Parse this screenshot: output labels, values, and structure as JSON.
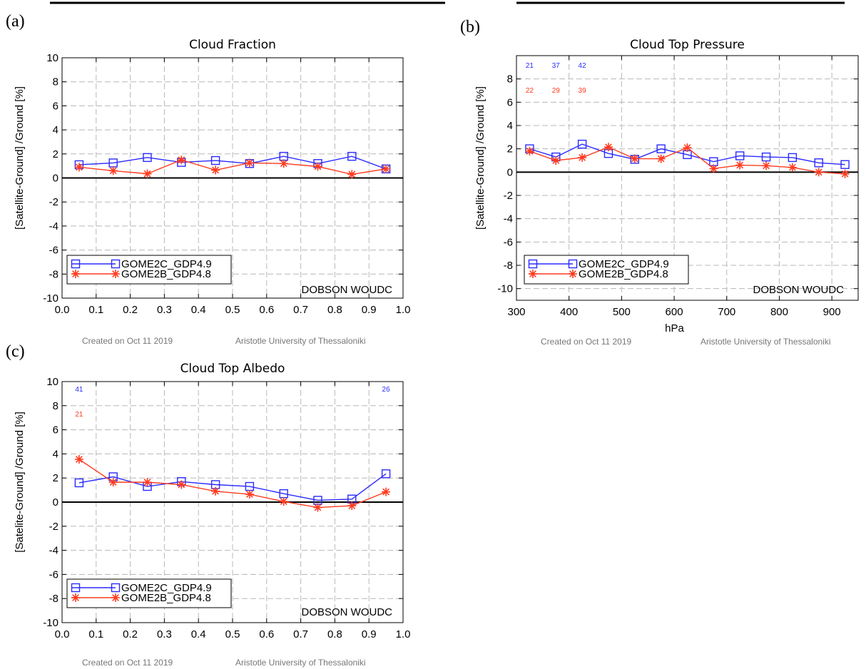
{
  "colors": {
    "series_blue": "#2b2bff",
    "series_red": "#ff3b1f",
    "grid": "#b8b8b8",
    "axis": "#000000",
    "footer": "#777777"
  },
  "chart_data": [
    {
      "panel": "(a)",
      "type": "line",
      "title": "Cloud Fraction",
      "xlabel": "",
      "ylabel": "[Satellite-Ground] /Ground  [%]",
      "xlim": [
        0.0,
        1.0
      ],
      "ylim": [
        -10,
        10
      ],
      "xticks": [
        "0.0",
        "0.1",
        "0.2",
        "0.3",
        "0.4",
        "0.5",
        "0.6",
        "0.7",
        "0.8",
        "0.9",
        "1.0"
      ],
      "yticks": [
        "-10",
        "-8",
        "-6",
        "-4",
        "-2",
        "0",
        "2",
        "4",
        "6",
        "8",
        "10"
      ],
      "x": [
        0.05,
        0.15,
        0.25,
        0.35,
        0.45,
        0.55,
        0.65,
        0.75,
        0.85,
        0.95
      ],
      "series": [
        {
          "name": "GOME2C_GDP4.9",
          "marker": "square",
          "values": [
            1.1,
            1.25,
            1.7,
            1.3,
            1.45,
            1.2,
            1.8,
            1.2,
            1.8,
            0.75
          ]
        },
        {
          "name": "GOME2B_GDP4.8",
          "marker": "asterisk",
          "values": [
            0.9,
            0.6,
            0.35,
            1.5,
            0.65,
            1.25,
            1.2,
            0.95,
            0.3,
            0.75
          ]
        }
      ],
      "counts_blue": [],
      "counts_red": [],
      "station": "DOBSON WOUDC",
      "footer_left": "Created on Oct 11 2019",
      "footer_right": "Aristotle University of Thessaloniki"
    },
    {
      "panel": "(b)",
      "type": "line",
      "title": "Cloud Top Pressure",
      "xlabel": "hPa",
      "ylabel": "[Satellite-Ground] /Ground  [%]",
      "xlim": [
        300,
        950
      ],
      "ylim": [
        -11,
        10
      ],
      "xticks": [
        "300",
        "400",
        "500",
        "600",
        "700",
        "800",
        "900"
      ],
      "yticks": [
        "-10",
        "-8",
        "-6",
        "-4",
        "-2",
        "0",
        "2",
        "4",
        "6",
        "8"
      ],
      "x": [
        325,
        375,
        425,
        475,
        525,
        575,
        625,
        675,
        725,
        775,
        825,
        875,
        925
      ],
      "series": [
        {
          "name": "GOME2C_GDP4.9",
          "marker": "square",
          "values": [
            2.0,
            1.3,
            2.4,
            1.6,
            1.1,
            2.0,
            1.5,
            0.9,
            1.4,
            1.3,
            1.25,
            0.8,
            0.65
          ]
        },
        {
          "name": "GOME2B_GDP4.8",
          "marker": "asterisk",
          "values": [
            1.8,
            1.0,
            1.25,
            2.15,
            1.15,
            1.15,
            2.1,
            0.3,
            0.6,
            0.55,
            0.4,
            0.0,
            -0.15
          ]
        }
      ],
      "counts_blue": [
        {
          "x": 325,
          "label": "21"
        },
        {
          "x": 375,
          "label": "37"
        },
        {
          "x": 425,
          "label": "42"
        }
      ],
      "counts_red": [
        {
          "x": 325,
          "label": "22"
        },
        {
          "x": 375,
          "label": "29"
        },
        {
          "x": 425,
          "label": "39"
        }
      ],
      "station": "DOBSON WOUDC",
      "footer_left": "Created on Oct 11 2019",
      "footer_right": "Aristotle University of Thessaloniki"
    },
    {
      "panel": "(c)",
      "type": "line",
      "title": "Cloud Top Albedo",
      "xlabel": "",
      "ylabel": "[Satelite-Ground] /Ground  [%]",
      "xlim": [
        0.0,
        1.0
      ],
      "ylim": [
        -10,
        10
      ],
      "xticks": [
        "0.0",
        "0.1",
        "0.2",
        "0.3",
        "0.4",
        "0.5",
        "0.6",
        "0.7",
        "0.8",
        "0.9",
        "1.0"
      ],
      "yticks": [
        "-10",
        "-8",
        "-6",
        "-4",
        "-2",
        "0",
        "2",
        "4",
        "6",
        "8",
        "10"
      ],
      "x": [
        0.05,
        0.15,
        0.25,
        0.35,
        0.45,
        0.55,
        0.65,
        0.75,
        0.85,
        0.95
      ],
      "series": [
        {
          "name": "GOME2C_GDP4.9",
          "marker": "square",
          "values": [
            1.6,
            2.1,
            1.3,
            1.7,
            1.45,
            1.3,
            0.7,
            0.15,
            0.25,
            2.35
          ]
        },
        {
          "name": "GOME2B_GDP4.8",
          "marker": "asterisk",
          "values": [
            3.55,
            1.65,
            1.65,
            1.45,
            0.9,
            0.65,
            0.05,
            -0.45,
            -0.3,
            0.85
          ]
        }
      ],
      "counts_blue": [
        {
          "x": 0.05,
          "label": "41"
        },
        {
          "x": 0.95,
          "label": "26"
        }
      ],
      "counts_red": [
        {
          "x": 0.05,
          "label": "21"
        }
      ],
      "station": "DOBSON WOUDC",
      "footer_left": "Created on Oct 11 2019",
      "footer_right": "Aristotle University of Thessaloniki"
    }
  ]
}
